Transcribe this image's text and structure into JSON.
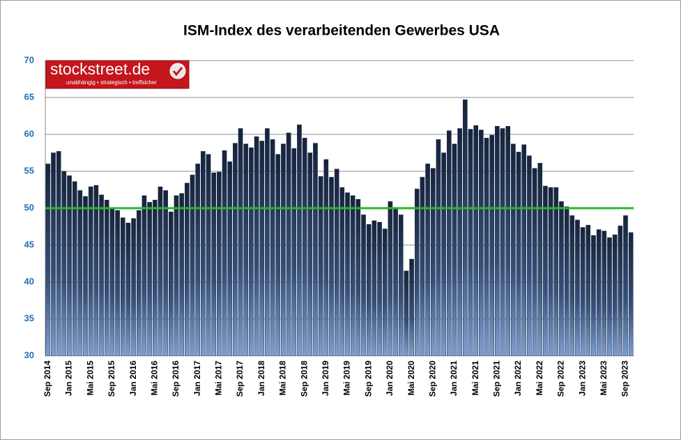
{
  "chart_data": {
    "type": "bar",
    "title": "ISM-Index des verarbeitenden Gewerbes USA",
    "categories": [
      "Sep 2014",
      null,
      null,
      null,
      "Jan 2015",
      null,
      null,
      null,
      "Mai 2015",
      null,
      null,
      null,
      "Sep 2015",
      null,
      null,
      null,
      "Jan 2016",
      null,
      null,
      null,
      "Mai 2016",
      null,
      null,
      null,
      "Sep 2016",
      null,
      null,
      null,
      "Jan 2017",
      null,
      null,
      null,
      "Mai 2017",
      null,
      null,
      null,
      "Sep 2017",
      null,
      null,
      null,
      "Jan 2018",
      null,
      null,
      null,
      "Mai 2018",
      null,
      null,
      null,
      "Sep 2018",
      null,
      null,
      null,
      "Jan 2019",
      null,
      null,
      null,
      "Mai 2019",
      null,
      null,
      null,
      "Sep 2019",
      null,
      null,
      null,
      "Jan 2020",
      null,
      null,
      null,
      "Mai 2020",
      null,
      null,
      null,
      "Sep 2020",
      null,
      null,
      null,
      "Jan 2021",
      null,
      null,
      null,
      "Mai 2021",
      null,
      null,
      null,
      "Sep 2021",
      null,
      null,
      null,
      "Jan 2022",
      null,
      null,
      null,
      "Mai 2022",
      null,
      null,
      null,
      "Sep 2022",
      null,
      null,
      null,
      "Jan 2023",
      null,
      null,
      null,
      "Mai 2023",
      null,
      null,
      null,
      "Sep 2023",
      null
    ],
    "values": [
      56,
      57.5,
      57.7,
      55,
      54.4,
      53.6,
      52.4,
      51.6,
      52.9,
      53.1,
      51.8,
      51.1,
      50.1,
      49.7,
      48.7,
      48,
      48.6,
      49.7,
      51.7,
      50.8,
      51.1,
      52.9,
      52.4,
      49.5,
      51.7,
      52,
      53.4,
      54.5,
      56,
      57.7,
      57.3,
      54.8,
      54.9,
      57.8,
      56.3,
      58.8,
      60.8,
      58.7,
      58.2,
      59.7,
      59.1,
      60.8,
      59.3,
      57.3,
      58.7,
      60.2,
      58.1,
      61.3,
      59.5,
      57.5,
      58.8,
      54.3,
      56.6,
      54.2,
      55.3,
      52.8,
      52.1,
      51.7,
      51.2,
      49.1,
      47.8,
      48.3,
      48.1,
      47.2,
      50.9,
      50.1,
      49.1,
      41.5,
      43.1,
      52.6,
      54.2,
      56,
      55.4,
      59.3,
      57.5,
      60.5,
      58.7,
      60.8,
      64.7,
      60.7,
      61.2,
      60.6,
      59.5,
      59.9,
      61.1,
      60.8,
      61.1,
      58.7,
      57.6,
      58.6,
      57.1,
      55.4,
      56.1,
      53,
      52.8,
      52.8,
      50.9,
      50.2,
      49,
      48.4,
      47.4,
      47.7,
      46.3,
      47.1,
      46.9,
      46,
      46.4,
      47.6,
      49,
      46.7
    ],
    "color": "#1c2c48",
    "ylim": [
      30,
      70
    ],
    "yticks": [
      30,
      35,
      40,
      45,
      50,
      55,
      60,
      65,
      70
    ],
    "grid": true,
    "reference_line": 50,
    "reference_color": "#2db52d"
  },
  "logo": {
    "name": "stockstreet.de",
    "tagline": "unabhängig • strategisch • treffsicher"
  }
}
